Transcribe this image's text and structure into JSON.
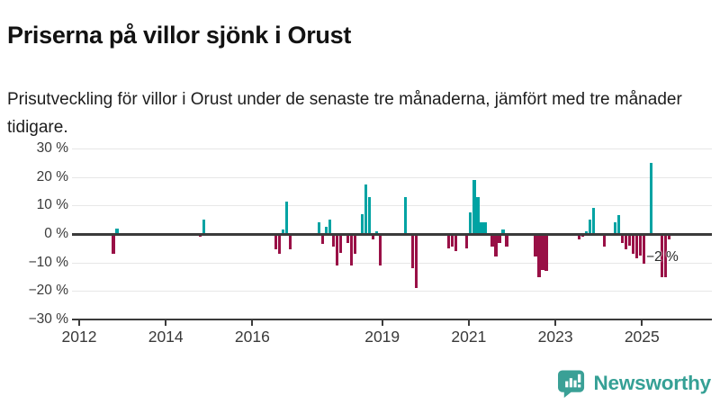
{
  "header": {
    "title": "Priserna på villor sjönk i Orust",
    "subtitle": "Prisutveckling för villor i Orust under de senaste tre månaderna, jämfört med tre månader tidigare."
  },
  "chart_data": {
    "type": "bar",
    "title": "Priserna på villor sjönk i Orust",
    "subtitle": "Prisutveckling för villor i Orust under de senaste tre månaderna, jämfört med tre månader tidigare.",
    "unit": "%",
    "xlabel": "",
    "ylabel": "",
    "ylim": [
      -30,
      30
    ],
    "xlim_years": [
      2011.8,
      2026.6
    ],
    "grid": true,
    "legend": false,
    "y_ticks": [
      {
        "v": 30,
        "label": "30 %"
      },
      {
        "v": 20,
        "label": "20 %"
      },
      {
        "v": 10,
        "label": "10 %"
      },
      {
        "v": 0,
        "label": "0 %"
      },
      {
        "v": -10,
        "label": "−10 %"
      },
      {
        "v": -20,
        "label": "−20 %"
      },
      {
        "v": -30,
        "label": "−30 %"
      }
    ],
    "x_ticks": [
      {
        "v": 2012,
        "label": "2012"
      },
      {
        "v": 2014,
        "label": "2014"
      },
      {
        "v": 2016,
        "label": "2016"
      },
      {
        "v": 2019,
        "label": "2019"
      },
      {
        "v": 2021,
        "label": "2021"
      },
      {
        "v": 2023,
        "label": "2023"
      },
      {
        "v": 2025,
        "label": "2025"
      }
    ],
    "colors": {
      "positive": "#00A3A3",
      "negative": "#991046"
    },
    "points": [
      [
        "2012-10",
        -7
      ],
      [
        "2012-11",
        2
      ],
      [
        "2014-10",
        -1
      ],
      [
        "2014-11",
        5
      ],
      [
        "2016-07",
        -5.5
      ],
      [
        "2016-08",
        -7
      ],
      [
        "2016-09",
        1.5
      ],
      [
        "2016-10",
        11.5
      ],
      [
        "2016-11",
        -5.5
      ],
      [
        "2017-07",
        4
      ],
      [
        "2017-08",
        -3.5
      ],
      [
        "2017-09",
        2.5
      ],
      [
        "2017-10",
        5
      ],
      [
        "2017-11",
        -4.5
      ],
      [
        "2017-12",
        -11
      ],
      [
        "2018-01",
        -6.5
      ],
      [
        "2018-03",
        -3
      ],
      [
        "2018-04",
        -11
      ],
      [
        "2018-05",
        -7
      ],
      [
        "2018-07",
        7
      ],
      [
        "2018-08",
        17.5
      ],
      [
        "2018-09",
        13
      ],
      [
        "2018-10",
        -2
      ],
      [
        "2018-11",
        1
      ],
      [
        "2018-12",
        -11
      ],
      [
        "2019-07",
        13
      ],
      [
        "2019-09",
        -12
      ],
      [
        "2019-10",
        -19
      ],
      [
        "2020-07",
        -5
      ],
      [
        "2020-08",
        -4.5
      ],
      [
        "2020-09",
        -6
      ],
      [
        "2020-12",
        -5
      ],
      [
        "2021-01",
        7.5
      ],
      [
        "2021-02",
        19
      ],
      [
        "2021-03",
        13
      ],
      [
        "2021-04",
        4
      ],
      [
        "2021-05",
        4
      ],
      [
        "2021-07",
        -4.5
      ],
      [
        "2021-08",
        -8
      ],
      [
        "2021-09",
        -3
      ],
      [
        "2021-10",
        1.5
      ],
      [
        "2021-11",
        -4.5
      ],
      [
        "2022-07",
        -8
      ],
      [
        "2022-08",
        -15
      ],
      [
        "2022-09",
        -12.5
      ],
      [
        "2022-10",
        -13
      ],
      [
        "2023-07",
        -2
      ],
      [
        "2023-08",
        -1
      ],
      [
        "2023-09",
        1
      ],
      [
        "2023-10",
        5
      ],
      [
        "2023-11",
        9
      ],
      [
        "2024-02",
        -4.5
      ],
      [
        "2024-05",
        4
      ],
      [
        "2024-06",
        6.5
      ],
      [
        "2024-07",
        -3
      ],
      [
        "2024-08",
        -5.5
      ],
      [
        "2024-09",
        -4
      ],
      [
        "2024-10",
        -7
      ],
      [
        "2024-11",
        -8.5
      ],
      [
        "2024-12",
        -7.5
      ],
      [
        "2025-01",
        -10.5
      ],
      [
        "2025-03",
        25
      ],
      [
        "2025-06",
        -15
      ],
      [
        "2025-07",
        -15
      ],
      [
        "2025-08",
        -2
      ]
    ],
    "annotation": {
      "text": "−2 %",
      "d": "2025-08",
      "v": -2
    }
  },
  "footer": {
    "brand": "Newsworthy"
  }
}
